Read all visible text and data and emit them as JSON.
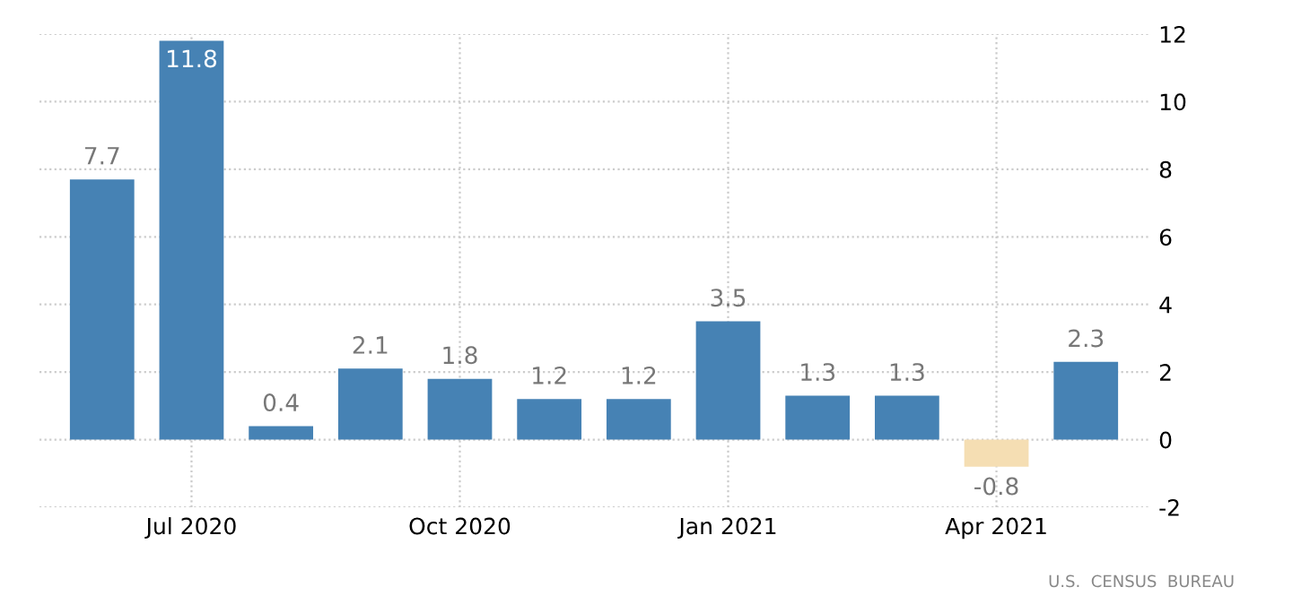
{
  "chart_data": {
    "type": "bar",
    "categories": [
      null,
      "Jul 2020",
      null,
      null,
      "Oct 2020",
      null,
      null,
      "Jan 2021",
      null,
      null,
      "Apr 2021",
      null
    ],
    "values": [
      7.7,
      11.8,
      0.4,
      2.1,
      1.8,
      1.2,
      1.2,
      3.5,
      1.3,
      1.3,
      -0.8,
      2.3
    ],
    "colors": [
      "#4682b4",
      "#4682b4",
      "#4682b4",
      "#4682b4",
      "#4682b4",
      "#4682b4",
      "#4682b4",
      "#4682b4",
      "#4682b4",
      "#4682b4",
      "#f5deb3",
      "#4682b4"
    ],
    "data_labels": true,
    "ylim": [
      -2,
      12
    ],
    "yticks": [
      -2,
      0,
      2,
      4,
      6,
      8,
      10,
      12
    ],
    "grid": true,
    "annotations": [
      "U.S.  CENSUS  BUREAU"
    ]
  }
}
